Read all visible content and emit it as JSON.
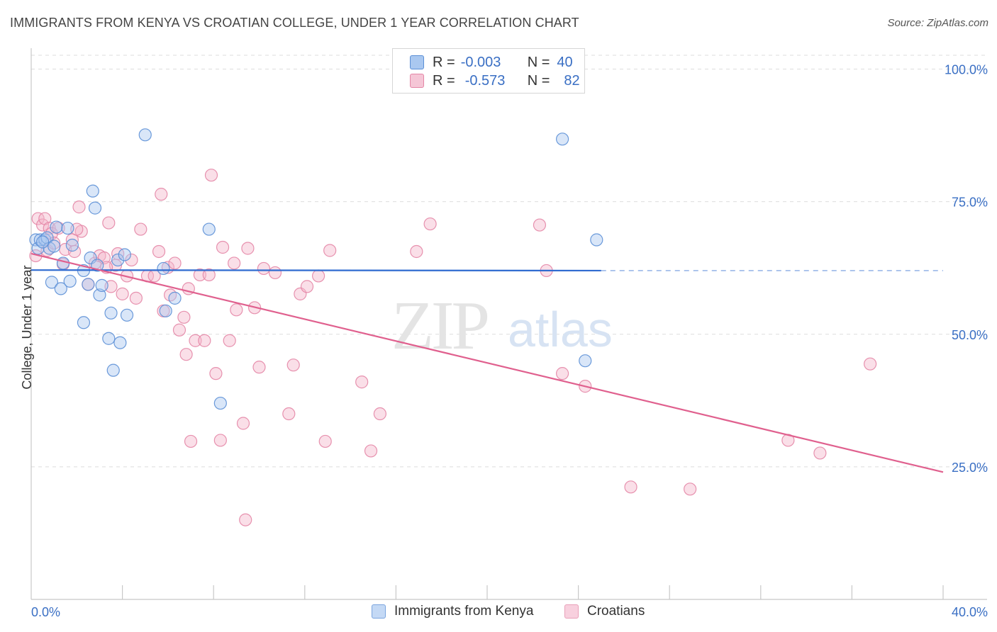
{
  "title": "IMMIGRANTS FROM KENYA VS CROATIAN COLLEGE, UNDER 1 YEAR CORRELATION CHART",
  "source": "Source: ZipAtlas.com",
  "watermark": {
    "zip": "ZIP",
    "atlas": "atlas"
  },
  "legend_top": [
    {
      "r_label": "R =",
      "r_value": "-0.003",
      "n_label": "N =",
      "n_value": "40"
    },
    {
      "r_label": "R =",
      "r_value": "-0.573",
      "n_label": "N =",
      "n_value": "82"
    }
  ],
  "legend_bottom": [
    "Immigrants from Kenya",
    "Croatians"
  ],
  "colors": {
    "kenya_fill": "#aac8f0",
    "kenya_stroke": "#5b8fd6",
    "kenya_line": "#2f6bd0",
    "croatian_fill": "#f5b8cc",
    "croatian_stroke": "#e486a6",
    "croatian_line": "#e0608e",
    "tick_label": "#3a6fc4",
    "grid": "#dddddd"
  },
  "chart_data": {
    "type": "scatter",
    "xlabel": "",
    "ylabel": "College, Under 1 year",
    "xlim": [
      0,
      40
    ],
    "ylim": [
      0,
      105
    ],
    "x_tick_labels": [
      "0.0%",
      "40.0%"
    ],
    "y_ticks": [
      25,
      50,
      75,
      100
    ],
    "y_tick_labels": [
      "25.0%",
      "50.0%",
      "75.0%",
      "100.0%"
    ],
    "grid": true,
    "series": [
      {
        "name": "Immigrants from Kenya",
        "points": [
          [
            0.2,
            67.8
          ],
          [
            0.3,
            66.2
          ],
          [
            0.4,
            67.8
          ],
          [
            0.6,
            67.8
          ],
          [
            0.7,
            68.2
          ],
          [
            0.8,
            66.2
          ],
          [
            0.9,
            59.8
          ],
          [
            1.1,
            70.2
          ],
          [
            1.3,
            58.6
          ],
          [
            1.4,
            63.4
          ],
          [
            1.6,
            70.0
          ],
          [
            1.7,
            60.0
          ],
          [
            1.8,
            66.8
          ],
          [
            2.3,
            62.0
          ],
          [
            2.3,
            52.2
          ],
          [
            2.5,
            59.4
          ],
          [
            2.6,
            64.4
          ],
          [
            2.7,
            77.0
          ],
          [
            2.8,
            73.8
          ],
          [
            2.9,
            63.0
          ],
          [
            3.0,
            57.4
          ],
          [
            3.1,
            59.2
          ],
          [
            3.4,
            49.2
          ],
          [
            3.5,
            54.0
          ],
          [
            3.6,
            43.2
          ],
          [
            3.8,
            64.0
          ],
          [
            3.9,
            48.4
          ],
          [
            4.1,
            65.0
          ],
          [
            4.2,
            53.6
          ],
          [
            5.0,
            87.6
          ],
          [
            5.8,
            62.4
          ],
          [
            5.9,
            54.4
          ],
          [
            6.3,
            56.8
          ],
          [
            7.8,
            69.8
          ],
          [
            8.3,
            37.0
          ],
          [
            23.3,
            86.8
          ],
          [
            24.3,
            45.0
          ],
          [
            24.8,
            67.8
          ],
          [
            0.5,
            67.4
          ],
          [
            1.0,
            66.6
          ]
        ],
        "trend": {
          "x": [
            0,
            25,
            40
          ],
          "y": [
            62.1,
            62.0,
            62.0
          ]
        }
      },
      {
        "name": "Croatians",
        "points": [
          [
            0.2,
            64.8
          ],
          [
            0.3,
            71.8
          ],
          [
            0.5,
            70.6
          ],
          [
            0.6,
            71.8
          ],
          [
            0.7,
            65.8
          ],
          [
            0.8,
            70.0
          ],
          [
            0.9,
            69.0
          ],
          [
            1.0,
            67.2
          ],
          [
            1.2,
            70.0
          ],
          [
            1.4,
            63.2
          ],
          [
            1.5,
            66.0
          ],
          [
            1.8,
            67.8
          ],
          [
            1.9,
            65.6
          ],
          [
            2.1,
            74.0
          ],
          [
            2.2,
            69.4
          ],
          [
            2.5,
            59.4
          ],
          [
            2.8,
            63.4
          ],
          [
            3.0,
            64.8
          ],
          [
            3.2,
            64.4
          ],
          [
            3.4,
            71.0
          ],
          [
            3.5,
            59.0
          ],
          [
            3.7,
            63.0
          ],
          [
            3.8,
            65.2
          ],
          [
            4.0,
            57.6
          ],
          [
            4.2,
            61.0
          ],
          [
            4.4,
            64.0
          ],
          [
            4.6,
            56.8
          ],
          [
            4.8,
            69.8
          ],
          [
            5.1,
            61.0
          ],
          [
            5.4,
            61.0
          ],
          [
            5.6,
            65.6
          ],
          [
            5.7,
            76.4
          ],
          [
            5.8,
            54.4
          ],
          [
            6.0,
            62.6
          ],
          [
            6.1,
            57.4
          ],
          [
            6.3,
            63.4
          ],
          [
            6.5,
            50.8
          ],
          [
            6.7,
            53.2
          ],
          [
            6.9,
            58.6
          ],
          [
            7.2,
            48.8
          ],
          [
            7.4,
            61.2
          ],
          [
            7.6,
            48.8
          ],
          [
            7.8,
            61.2
          ],
          [
            7.9,
            80.0
          ],
          [
            8.1,
            42.6
          ],
          [
            8.4,
            66.4
          ],
          [
            8.7,
            48.8
          ],
          [
            8.9,
            63.4
          ],
          [
            9.0,
            54.6
          ],
          [
            9.3,
            33.2
          ],
          [
            9.5,
            66.2
          ],
          [
            9.8,
            55.0
          ],
          [
            10.0,
            43.8
          ],
          [
            10.2,
            62.4
          ],
          [
            10.7,
            61.6
          ],
          [
            11.3,
            35.0
          ],
          [
            11.5,
            44.2
          ],
          [
            11.8,
            57.6
          ],
          [
            12.1,
            59.0
          ],
          [
            12.6,
            61.0
          ],
          [
            12.9,
            29.8
          ],
          [
            13.1,
            65.8
          ],
          [
            14.5,
            41.0
          ],
          [
            14.9,
            28.0
          ],
          [
            15.3,
            35.0
          ],
          [
            16.9,
            65.6
          ],
          [
            17.5,
            70.8
          ],
          [
            22.3,
            70.6
          ],
          [
            22.6,
            62.0
          ],
          [
            23.3,
            42.6
          ],
          [
            24.3,
            40.2
          ],
          [
            26.3,
            21.2
          ],
          [
            28.9,
            20.8
          ],
          [
            33.2,
            30.0
          ],
          [
            34.6,
            27.6
          ],
          [
            36.8,
            44.4
          ],
          [
            6.8,
            46.2
          ],
          [
            8.3,
            30.0
          ],
          [
            9.4,
            15.0
          ],
          [
            7.0,
            29.8
          ],
          [
            3.3,
            62.6
          ],
          [
            2.0,
            69.8
          ]
        ],
        "trend": {
          "x": [
            0,
            40
          ],
          "y": [
            65.2,
            24.0
          ]
        }
      }
    ]
  }
}
